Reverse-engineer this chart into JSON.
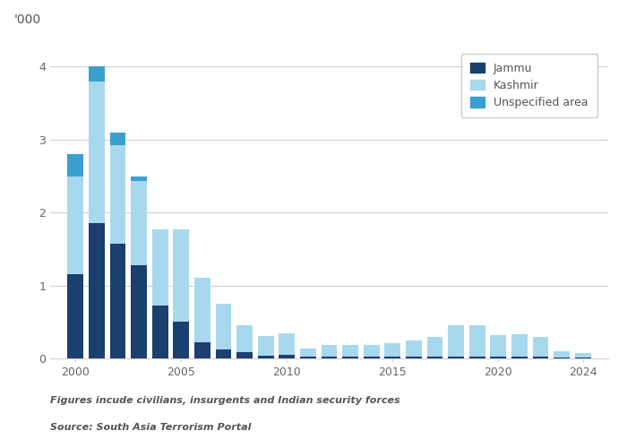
{
  "years": [
    2000,
    2001,
    2002,
    2003,
    2004,
    2005,
    2006,
    2007,
    2008,
    2009,
    2010,
    2011,
    2012,
    2013,
    2014,
    2015,
    2016,
    2017,
    2018,
    2019,
    2020,
    2021,
    2022,
    2023,
    2024
  ],
  "jammu": [
    1.15,
    1.85,
    1.57,
    1.28,
    0.72,
    0.5,
    0.22,
    0.12,
    0.08,
    0.04,
    0.05,
    0.02,
    0.02,
    0.02,
    0.02,
    0.02,
    0.02,
    0.02,
    0.03,
    0.02,
    0.02,
    0.03,
    0.02,
    0.01,
    0.01
  ],
  "kashmir": [
    1.35,
    1.95,
    1.35,
    1.15,
    1.05,
    1.27,
    0.88,
    0.63,
    0.37,
    0.27,
    0.3,
    0.12,
    0.17,
    0.16,
    0.16,
    0.19,
    0.22,
    0.27,
    0.42,
    0.43,
    0.3,
    0.3,
    0.27,
    0.09,
    0.06
  ],
  "unspecified": [
    0.3,
    0.2,
    0.18,
    0.07,
    0.0,
    0.0,
    0.0,
    0.0,
    0.0,
    0.0,
    0.0,
    0.0,
    0.0,
    0.0,
    0.0,
    0.0,
    0.0,
    0.0,
    0.0,
    0.0,
    0.0,
    0.0,
    0.0,
    0.0,
    0.0
  ],
  "color_jammu": "#1b3f6e",
  "color_kashmir": "#a8d8ee",
  "color_unspecified": "#3aa0d0",
  "ylabel": "'000",
  "yticks": [
    0,
    1,
    2,
    3,
    4
  ],
  "xtick_positions": [
    2000,
    2005,
    2010,
    2015,
    2020,
    2024
  ],
  "legend_labels": [
    "Jammu",
    "Kashmir",
    "Unspecified area"
  ],
  "footnote1": "Figures incude civilians, insurgents and Indian security forces",
  "footnote2": "Source: South Asia Terrorism Portal",
  "bg_color": "#ffffff",
  "grid_color": "#d0d0d0"
}
